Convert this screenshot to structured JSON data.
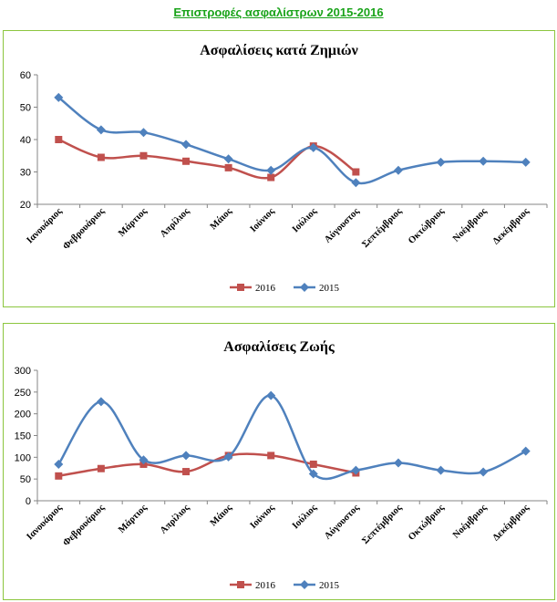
{
  "page_title": "Επιστροφές ασφαλίστρων 2015-2016",
  "colors": {
    "series_2016": "#c0504d",
    "series_2015": "#4f81bd",
    "border": "#8cc63f",
    "title": "#1aa31a"
  },
  "chart_data": [
    {
      "type": "line",
      "title": "Ασφαλίσεις κατά Ζημιών",
      "categories": [
        "Ιανουάριος",
        "Φεβρουάριος",
        "Μάρτιος",
        "Απρίλιος",
        "Μάιος",
        "Ιούνιος",
        "Ιούλιος",
        "Αύγουστος",
        "Σεπτέμβριος",
        "Οκτώβριος",
        "Νοέμβριος",
        "Δεκέμβριος"
      ],
      "series": [
        {
          "name": "2016",
          "marker": "square",
          "values": [
            40,
            34.5,
            35,
            33.3,
            31.3,
            28.3,
            38,
            30,
            null,
            null,
            null,
            null
          ]
        },
        {
          "name": "2015",
          "marker": "diamond",
          "values": [
            53,
            43,
            42.2,
            38.5,
            34,
            30.5,
            37.5,
            26.7,
            30.5,
            33,
            33.3,
            33
          ]
        }
      ],
      "ylim": [
        20,
        60
      ],
      "yticks": [
        20,
        30,
        40,
        50,
        60
      ],
      "legend": "bottom",
      "grid": false
    },
    {
      "type": "line",
      "title": "Ασφαλίσεις Ζωής",
      "categories": [
        "Ιανουάριος",
        "Φεβρουάριος",
        "Μάρτιος",
        "Απρίλιος",
        "Μάιος",
        "Ιούνιος",
        "Ιούλιος",
        "Αύγουστος",
        "Σεπτέμβριος",
        "Οκτώβριος",
        "Νοέμβριος",
        "Δεκέμβριος"
      ],
      "series": [
        {
          "name": "2016",
          "marker": "square",
          "values": [
            57,
            74,
            84,
            67,
            104,
            104,
            84,
            64,
            null,
            null,
            null,
            null
          ]
        },
        {
          "name": "2015",
          "marker": "diamond",
          "values": [
            84,
            228,
            94,
            104,
            101,
            242,
            62,
            70,
            87,
            70,
            66,
            114
          ]
        }
      ],
      "ylim": [
        0,
        300
      ],
      "yticks": [
        0,
        50,
        100,
        150,
        200,
        250,
        300
      ],
      "legend": "bottom",
      "grid": false
    }
  ]
}
